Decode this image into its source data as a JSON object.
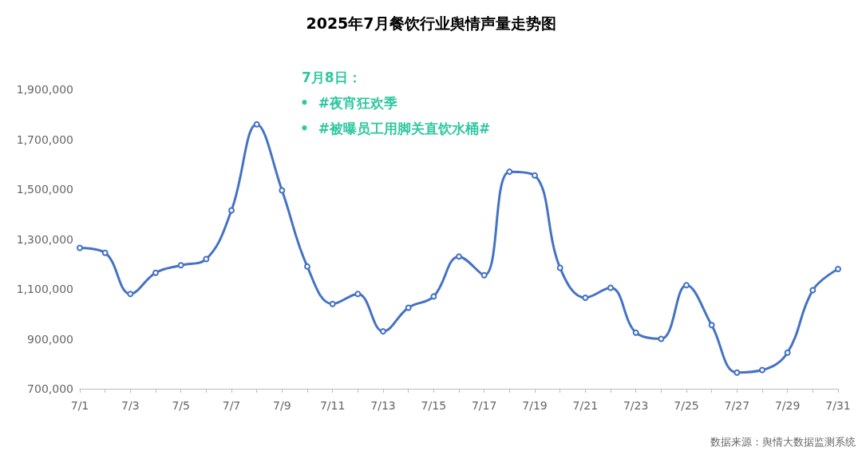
{
  "chart_data": {
    "type": "line",
    "title": "2025年7月餐饮行业舆情声量走势图",
    "categories": [
      "7/1",
      null,
      "7/3",
      null,
      "7/5",
      null,
      "7/7",
      null,
      "7/9",
      null,
      "7/11",
      null,
      "7/13",
      null,
      "7/15",
      null,
      "7/17",
      null,
      "7/19",
      null,
      "7/21",
      null,
      "7/23",
      null,
      "7/25",
      null,
      "7/27",
      null,
      "7/29",
      null,
      "7/31"
    ],
    "series": [
      {
        "color": "#4472c4",
        "values": [
          1265000,
          1245000,
          1080000,
          1165000,
          1195000,
          1220000,
          1415000,
          1760000,
          1495000,
          1190000,
          1040000,
          1080000,
          930000,
          1025000,
          1070000,
          1230000,
          1155000,
          1570000,
          1555000,
          1185000,
          1065000,
          1105000,
          925000,
          900000,
          1115000,
          955000,
          765000,
          775000,
          845000,
          1095000,
          1180000
        ]
      }
    ],
    "ylim": [
      700000,
      1900000
    ],
    "yticks": [
      {
        "value": 700000,
        "label": "700,000"
      },
      {
        "value": 900000,
        "label": "900,000"
      },
      {
        "value": 1100000,
        "label": "1,100,000"
      },
      {
        "value": 1300000,
        "label": "1,300,000"
      },
      {
        "value": 1500000,
        "label": "1,500,000"
      },
      {
        "value": 1700000,
        "label": "1,700,000"
      },
      {
        "value": 1900000,
        "label": "1,900,000"
      }
    ],
    "grid": false,
    "marker": "circle",
    "line_style": "solid",
    "annotations": [
      "7月8日：",
      "•  #夜宵狂欢季",
      "•  #被曝员工用脚关直饮水桶#",
      "数据来源：舆情大数据监测系统"
    ]
  }
}
